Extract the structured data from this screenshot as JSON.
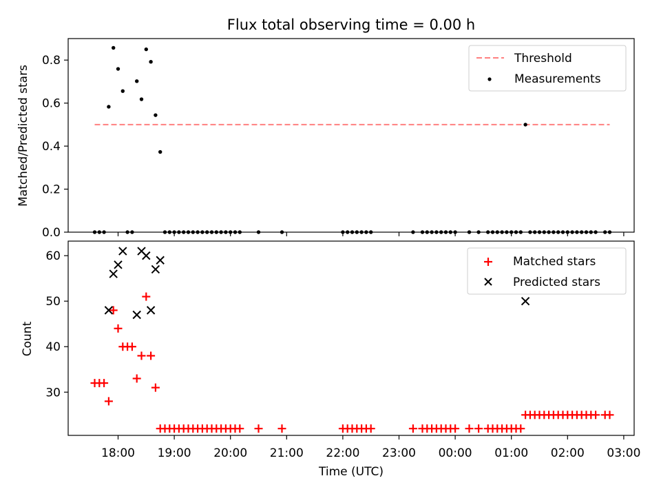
{
  "title": "Flux total observing time = 0.00 h",
  "xlabel": "Time (UTC)",
  "x_tick_labels": [
    "18:00",
    "19:00",
    "20:00",
    "21:00",
    "22:00",
    "23:00",
    "00:00",
    "01:00",
    "02:00",
    "03:00"
  ],
  "colors": {
    "threshold": "#ff7f7f",
    "measurement": "#000000",
    "matched": "#ff0000",
    "predicted": "#000000"
  },
  "chart_data": [
    {
      "type": "scatter",
      "ylabel": "Matched/Predicted stars",
      "ylim": [
        0,
        0.9
      ],
      "y_ticks": [
        "0.0",
        "0.2",
        "0.4",
        "0.6",
        "0.8"
      ],
      "legend_position": "top-right",
      "threshold": {
        "name": "Threshold",
        "value": 0.5,
        "x_range": [
          "17:35",
          "02:45"
        ],
        "style": "dashed"
      },
      "series": [
        {
          "name": "Measurements",
          "points": [
            [
              "17:35",
              0
            ],
            [
              "17:40",
              0
            ],
            [
              "17:45",
              0
            ],
            [
              "17:50",
              0.583
            ],
            [
              "17:55",
              0.857
            ],
            [
              "18:00",
              0.759
            ],
            [
              "18:05",
              0.656
            ],
            [
              "18:10",
              0
            ],
            [
              "18:15",
              0
            ],
            [
              "18:20",
              0.702
            ],
            [
              "18:25",
              0.618
            ],
            [
              "18:30",
              0.85
            ],
            [
              "18:35",
              0.792
            ],
            [
              "18:40",
              0.544
            ],
            [
              "18:45",
              0.373
            ],
            [
              "18:50",
              0
            ],
            [
              "18:55",
              0
            ],
            [
              "19:00",
              0
            ],
            [
              "19:05",
              0
            ],
            [
              "19:10",
              0
            ],
            [
              "19:15",
              0
            ],
            [
              "19:20",
              0
            ],
            [
              "19:25",
              0
            ],
            [
              "19:30",
              0
            ],
            [
              "19:35",
              0
            ],
            [
              "19:40",
              0
            ],
            [
              "19:45",
              0
            ],
            [
              "19:50",
              0
            ],
            [
              "19:55",
              0
            ],
            [
              "20:00",
              0
            ],
            [
              "20:05",
              0
            ],
            [
              "20:10",
              0
            ],
            [
              "20:30",
              0
            ],
            [
              "20:55",
              0
            ],
            [
              "22:00",
              0
            ],
            [
              "22:05",
              0
            ],
            [
              "22:10",
              0
            ],
            [
              "22:15",
              0
            ],
            [
              "22:20",
              0
            ],
            [
              "22:25",
              0
            ],
            [
              "22:30",
              0
            ],
            [
              "23:15",
              0
            ],
            [
              "23:25",
              0
            ],
            [
              "23:30",
              0
            ],
            [
              "23:35",
              0
            ],
            [
              "23:40",
              0
            ],
            [
              "23:45",
              0
            ],
            [
              "23:50",
              0
            ],
            [
              "23:55",
              0
            ],
            [
              "00:00",
              0
            ],
            [
              "00:15",
              0
            ],
            [
              "00:25",
              0
            ],
            [
              "00:35",
              0
            ],
            [
              "00:40",
              0
            ],
            [
              "00:45",
              0
            ],
            [
              "00:50",
              0
            ],
            [
              "00:55",
              0
            ],
            [
              "01:00",
              0
            ],
            [
              "01:05",
              0
            ],
            [
              "01:10",
              0
            ],
            [
              "01:15",
              0.5
            ],
            [
              "01:20",
              0
            ],
            [
              "01:25",
              0
            ],
            [
              "01:30",
              0
            ],
            [
              "01:35",
              0
            ],
            [
              "01:40",
              0
            ],
            [
              "01:45",
              0
            ],
            [
              "01:50",
              0
            ],
            [
              "01:55",
              0
            ],
            [
              "02:00",
              0
            ],
            [
              "02:05",
              0
            ],
            [
              "02:10",
              0
            ],
            [
              "02:15",
              0
            ],
            [
              "02:20",
              0
            ],
            [
              "02:25",
              0
            ],
            [
              "02:30",
              0
            ],
            [
              "02:40",
              0
            ],
            [
              "02:45",
              0
            ]
          ]
        }
      ]
    },
    {
      "type": "scatter",
      "ylabel": "Count",
      "ylim": [
        20.5,
        63.2
      ],
      "y_ticks": [
        "30",
        "40",
        "50",
        "60"
      ],
      "legend_position": "top-right",
      "series": [
        {
          "name": "Matched stars",
          "marker": "plus",
          "points": [
            [
              "17:35",
              32
            ],
            [
              "17:40",
              32
            ],
            [
              "17:45",
              32
            ],
            [
              "17:50",
              28
            ],
            [
              "17:55",
              48
            ],
            [
              "18:00",
              44
            ],
            [
              "18:05",
              40
            ],
            [
              "18:10",
              40
            ],
            [
              "18:15",
              40
            ],
            [
              "18:20",
              33
            ],
            [
              "18:25",
              38
            ],
            [
              "18:30",
              51
            ],
            [
              "18:35",
              38
            ],
            [
              "18:40",
              31
            ],
            [
              "18:45",
              22
            ],
            [
              "18:50",
              22
            ],
            [
              "18:55",
              22
            ],
            [
              "19:00",
              22
            ],
            [
              "19:05",
              22
            ],
            [
              "19:10",
              22
            ],
            [
              "19:15",
              22
            ],
            [
              "19:20",
              22
            ],
            [
              "19:25",
              22
            ],
            [
              "19:30",
              22
            ],
            [
              "19:35",
              22
            ],
            [
              "19:40",
              22
            ],
            [
              "19:45",
              22
            ],
            [
              "19:50",
              22
            ],
            [
              "19:55",
              22
            ],
            [
              "20:00",
              22
            ],
            [
              "20:05",
              22
            ],
            [
              "20:10",
              22
            ],
            [
              "20:30",
              22
            ],
            [
              "20:55",
              22
            ],
            [
              "22:00",
              22
            ],
            [
              "22:05",
              22
            ],
            [
              "22:10",
              22
            ],
            [
              "22:15",
              22
            ],
            [
              "22:20",
              22
            ],
            [
              "22:25",
              22
            ],
            [
              "22:30",
              22
            ],
            [
              "23:15",
              22
            ],
            [
              "23:25",
              22
            ],
            [
              "23:30",
              22
            ],
            [
              "23:35",
              22
            ],
            [
              "23:40",
              22
            ],
            [
              "23:45",
              22
            ],
            [
              "23:50",
              22
            ],
            [
              "23:55",
              22
            ],
            [
              "00:00",
              22
            ],
            [
              "00:15",
              22
            ],
            [
              "00:25",
              22
            ],
            [
              "00:35",
              22
            ],
            [
              "00:40",
              22
            ],
            [
              "00:45",
              22
            ],
            [
              "00:50",
              22
            ],
            [
              "00:55",
              22
            ],
            [
              "01:00",
              22
            ],
            [
              "01:05",
              22
            ],
            [
              "01:10",
              22
            ],
            [
              "01:15",
              25
            ],
            [
              "01:20",
              25
            ],
            [
              "01:25",
              25
            ],
            [
              "01:30",
              25
            ],
            [
              "01:35",
              25
            ],
            [
              "01:40",
              25
            ],
            [
              "01:45",
              25
            ],
            [
              "01:50",
              25
            ],
            [
              "01:55",
              25
            ],
            [
              "02:00",
              25
            ],
            [
              "02:05",
              25
            ],
            [
              "02:10",
              25
            ],
            [
              "02:15",
              25
            ],
            [
              "02:20",
              25
            ],
            [
              "02:25",
              25
            ],
            [
              "02:30",
              25
            ],
            [
              "02:40",
              25
            ],
            [
              "02:45",
              25
            ]
          ]
        },
        {
          "name": "Predicted stars",
          "marker": "x",
          "points": [
            [
              "17:50",
              48
            ],
            [
              "17:55",
              56
            ],
            [
              "18:00",
              58
            ],
            [
              "18:05",
              61
            ],
            [
              "18:20",
              47
            ],
            [
              "18:25",
              61
            ],
            [
              "18:30",
              60
            ],
            [
              "18:35",
              48
            ],
            [
              "18:40",
              57
            ],
            [
              "18:45",
              59
            ],
            [
              "01:15",
              50
            ]
          ]
        }
      ]
    }
  ]
}
